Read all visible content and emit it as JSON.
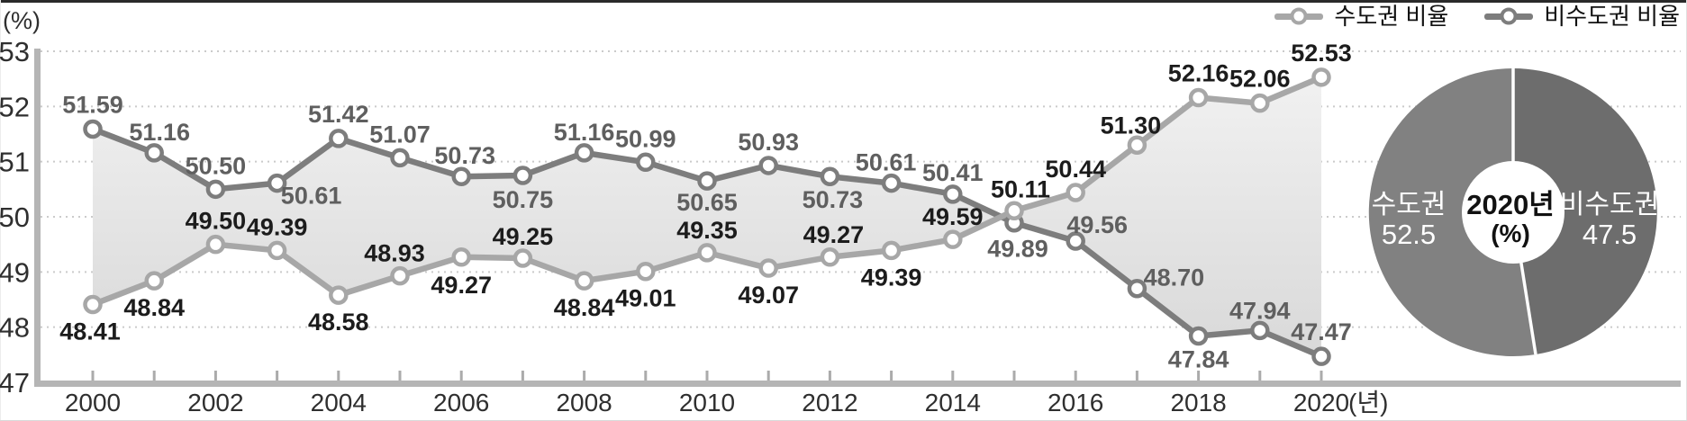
{
  "y_axis_unit": "(%)",
  "x_axis_unit": "(년)",
  "legend": [
    {
      "label": "수도권 비율",
      "color": "#a7a7a7"
    },
    {
      "label": "비수도권 비율",
      "color": "#7d7d7d"
    }
  ],
  "chart_data": {
    "type": "line",
    "x": [
      2000,
      2001,
      2002,
      2003,
      2004,
      2005,
      2006,
      2007,
      2008,
      2009,
      2010,
      2011,
      2012,
      2013,
      2014,
      2015,
      2016,
      2017,
      2018,
      2019,
      2020
    ],
    "x_tick_label_step": 2,
    "ylim": [
      47,
      53
    ],
    "y_ticks": [
      53,
      52,
      51,
      50,
      49,
      48,
      47
    ],
    "grid": "dotted-horizontal",
    "legend_position": "top-right",
    "band_fill_between_series": true,
    "series": [
      {
        "name": "수도권 비율",
        "color": "#a7a7a7",
        "label_color": "#1c1c1c",
        "values": [
          48.41,
          48.84,
          49.5,
          49.39,
          48.58,
          48.93,
          49.27,
          49.25,
          48.84,
          49.01,
          49.35,
          49.07,
          49.27,
          49.39,
          49.59,
          50.11,
          50.44,
          51.3,
          52.16,
          52.06,
          52.53
        ],
        "label_offsets": [
          [
            -3,
            30
          ],
          [
            0,
            30
          ],
          [
            0,
            -26
          ],
          [
            0,
            -26
          ],
          [
            0,
            30
          ],
          [
            -6,
            -25
          ],
          [
            0,
            31
          ],
          [
            0,
            -24
          ],
          [
            0,
            30
          ],
          [
            0,
            30
          ],
          [
            0,
            -25
          ],
          [
            0,
            30
          ],
          [
            4,
            -25
          ],
          [
            0,
            30
          ],
          [
            0,
            -25
          ],
          [
            7,
            -24
          ],
          [
            0,
            -26
          ],
          [
            -7,
            -22
          ],
          [
            0,
            -27
          ],
          [
            0,
            -27
          ],
          [
            0,
            -27
          ]
        ]
      },
      {
        "name": "비수도권 비율",
        "color": "#7d7d7d",
        "label_color": "#5f5f5f",
        "values": [
          51.59,
          51.16,
          50.5,
          50.61,
          51.42,
          51.07,
          50.73,
          50.75,
          51.16,
          50.99,
          50.65,
          50.93,
          50.73,
          50.61,
          50.41,
          49.89,
          49.56,
          48.7,
          47.84,
          47.94,
          47.47
        ],
        "label_offsets": [
          [
            0,
            -27
          ],
          [
            6,
            -23
          ],
          [
            0,
            -26
          ],
          [
            38,
            14
          ],
          [
            0,
            -27
          ],
          [
            0,
            -26
          ],
          [
            4,
            -23
          ],
          [
            0,
            27
          ],
          [
            0,
            -23
          ],
          [
            0,
            -26
          ],
          [
            0,
            24
          ],
          [
            0,
            -26
          ],
          [
            3,
            26
          ],
          [
            -6,
            -23
          ],
          [
            0,
            -24
          ],
          [
            4,
            29
          ],
          [
            24,
            -18
          ],
          [
            41,
            -12
          ],
          [
            0,
            26
          ],
          [
            0,
            -22
          ],
          [
            0,
            -27
          ]
        ]
      }
    ]
  },
  "donut": {
    "center_label_line1": "2020년",
    "center_label_line2": "(%)",
    "segments": [
      {
        "name": "수도권",
        "value": 52.5,
        "display": "52.5",
        "color": "#818181",
        "side": "left"
      },
      {
        "name": "비수도권",
        "value": 47.5,
        "display": "47.5",
        "color": "#6d6d6d",
        "side": "right"
      }
    ]
  }
}
